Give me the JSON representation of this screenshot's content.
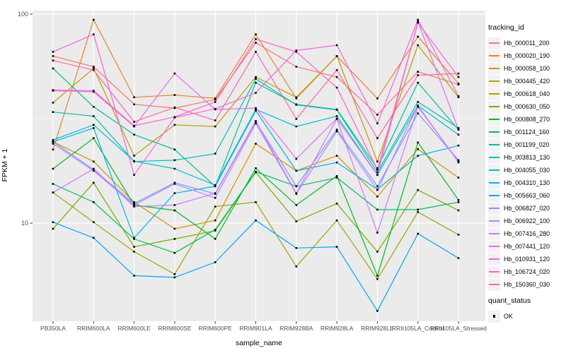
{
  "figure": {
    "panel_bg": "#EBEBEB",
    "grid_color": "#FFFFFF",
    "tick_color": "#333333",
    "tick_text_color": "#4D4D4D",
    "point_color": "#000000",
    "legend_key_bg": "#F2F2F2",
    "legend_tracking": {
      "title": "tracking_id"
    },
    "legend_quant": {
      "title": "quant_status",
      "items": [
        {
          "label": "OK",
          "marker": "black-square"
        }
      ]
    }
  },
  "chart_data": {
    "type": "line",
    "title": "",
    "xlabel": "sample_name",
    "ylabel": "FPKM + 1",
    "y_scale": "log10",
    "ylim": [
      3.4,
      104
    ],
    "y_major_ticks": [
      100,
      10
    ],
    "y_minor_ticks": [
      31.6
    ],
    "grid": true,
    "legend_position": "right",
    "point_marker": "small black square (quant_status = OK) at every data point",
    "categories": [
      "PB350LA",
      "RRIM600LA",
      "RRIM600LE",
      "RRIM600SE",
      "RRIM600PE",
      "RRIM901LA",
      "RRIM928BA",
      "RRIM928LA",
      "RRIM928LE",
      "RRII105LA_Control",
      "RRII105LA_Stressed"
    ],
    "series": [
      {
        "name": "Hb_000011_200",
        "color": "#F8766D",
        "values": [
          63,
          56,
          37,
          35.5,
          39,
          73,
          56,
          50,
          33,
          53,
          46
        ]
      },
      {
        "name": "Hb_000020_190",
        "color": "#E9842C",
        "values": [
          22.5,
          94,
          40,
          41,
          39.5,
          80,
          39.5,
          63,
          39.5,
          78,
          46.5
        ]
      },
      {
        "name": "Hb_000058_100",
        "color": "#D69100",
        "values": [
          24.5,
          19.7,
          12.6,
          9.4,
          10.3,
          24,
          17.8,
          21,
          13.4,
          22.6,
          16.5
        ]
      },
      {
        "name": "Hb_000445_420",
        "color": "#BC9D00",
        "values": [
          37.7,
          55,
          21,
          29.5,
          29,
          50,
          40,
          63,
          19.7,
          71,
          40
        ]
      },
      {
        "name": "Hb_000618_040",
        "color": "#9CA700",
        "values": [
          14,
          10.1,
          7.3,
          5.7,
          12,
          12.6,
          6.2,
          10.3,
          5.4,
          11.3,
          8.8
        ]
      },
      {
        "name": "Hb_000630_050",
        "color": "#6FB000",
        "values": [
          9.4,
          15.6,
          7.7,
          8.4,
          9.2,
          17.5,
          10.2,
          12.4,
          7.3,
          14.4,
          11.5
        ]
      },
      {
        "name": "Hb_000808_270",
        "color": "#00B822",
        "values": [
          18.2,
          25.5,
          12.2,
          11.5,
          8.4,
          18.3,
          12.2,
          16.8,
          5.6,
          24.3,
          12.9
        ]
      },
      {
        "name": "Hb_001124_160",
        "color": "#00BD61",
        "values": [
          15.4,
          12.6,
          8.4,
          7.2,
          9.3,
          17.6,
          15,
          16.5,
          11.6,
          11.6,
          12.6
        ]
      },
      {
        "name": "Hb_001199_020",
        "color": "#00C08D",
        "values": [
          55,
          36,
          26.5,
          22.5,
          15,
          47,
          37,
          35,
          18.3,
          47,
          28
        ]
      },
      {
        "name": "Hb_003813_130",
        "color": "#00C0B2",
        "values": [
          34,
          32.5,
          19.7,
          20,
          21.5,
          49,
          36.8,
          34.8,
          17.5,
          38,
          28.5
        ]
      },
      {
        "name": "Hb_004055_030",
        "color": "#00BCD3",
        "values": [
          25,
          29.5,
          19.8,
          18.2,
          15.2,
          35,
          29,
          32.5,
          17,
          36.5,
          26.5
        ]
      },
      {
        "name": "Hb_004310_130",
        "color": "#00B3EE",
        "values": [
          24.5,
          28.5,
          8.5,
          13.9,
          15,
          34.5,
          17.8,
          19.5,
          14.5,
          21,
          23.5
        ]
      },
      {
        "name": "Hb_005663_060",
        "color": "#00A5FF",
        "values": [
          10.1,
          8.5,
          5.6,
          5.5,
          6.5,
          10.3,
          7.6,
          7.7,
          3.8,
          8.9,
          6.8
        ]
      },
      {
        "name": "Hb_006827_020",
        "color": "#7C96FF",
        "values": [
          24.5,
          18,
          12.4,
          15.6,
          13.8,
          30.5,
          15,
          28,
          15,
          33.5,
          20
        ]
      },
      {
        "name": "Hb_006922_100",
        "color": "#AC88FF",
        "values": [
          24,
          17.8,
          12.2,
          15.4,
          13.2,
          30,
          13.8,
          27.5,
          14.4,
          36.5,
          19.5
        ]
      },
      {
        "name": "Hb_007416_280",
        "color": "#CF78FF",
        "values": [
          14,
          18.2,
          12,
          12.2,
          13.9,
          30.8,
          13.9,
          31.5,
          9,
          36,
          19.7
        ]
      },
      {
        "name": "Hb_007441_120",
        "color": "#E76BF3",
        "values": [
          43,
          42.5,
          29,
          52,
          35,
          35.5,
          20.3,
          31.6,
          17,
          92,
          28
        ]
      },
      {
        "name": "Hb_010931_120",
        "color": "#F763E0",
        "values": [
          66,
          80,
          17,
          32,
          35.2,
          42,
          67,
          71,
          30,
          94,
          40.5
        ]
      },
      {
        "name": "Hb_106724_020",
        "color": "#FF61C7",
        "values": [
          43.3,
          43,
          29.2,
          32.2,
          38,
          76,
          66,
          44.5,
          18,
          91,
          50
        ]
      },
      {
        "name": "Hb_150360_030",
        "color": "#FF65AC",
        "values": [
          60,
          54,
          30.5,
          35.8,
          31,
          66,
          31.5,
          54,
          25.5,
          51,
          52
        ]
      }
    ]
  }
}
